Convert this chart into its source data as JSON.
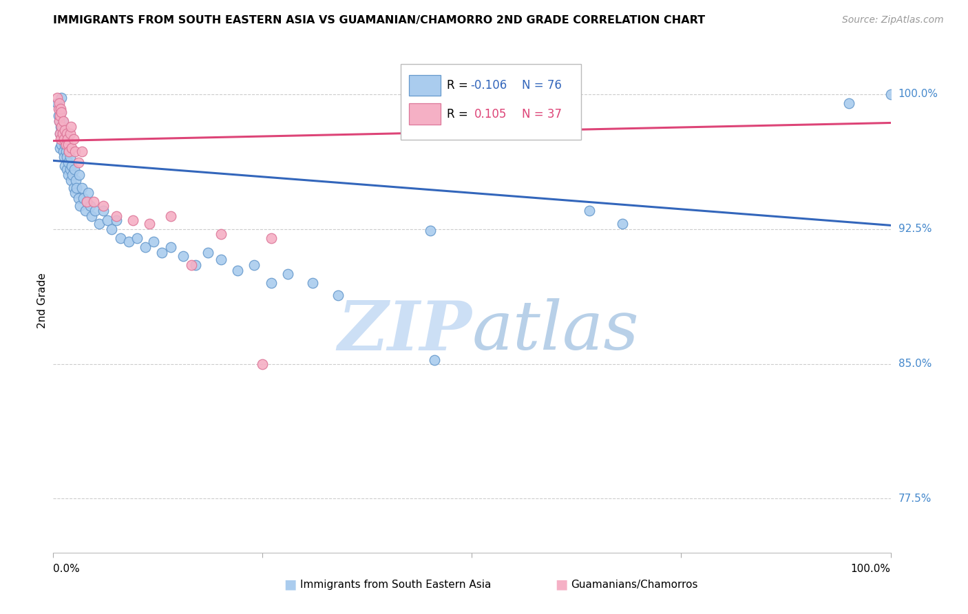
{
  "title": "IMMIGRANTS FROM SOUTH EASTERN ASIA VS GUAMANIAN/CHAMORRO 2ND GRADE CORRELATION CHART",
  "source": "Source: ZipAtlas.com",
  "ylabel": "2nd Grade",
  "xlim": [
    0.0,
    1.0
  ],
  "ylim": [
    0.745,
    1.025
  ],
  "yticks": [
    0.775,
    0.85,
    0.925,
    1.0
  ],
  "ytick_labels": [
    "77.5%",
    "85.0%",
    "92.5%",
    "100.0%"
  ],
  "R_blue": -0.106,
  "N_blue": 76,
  "R_pink": 0.105,
  "N_pink": 37,
  "blue_color": "#aaccee",
  "pink_color": "#f5b0c5",
  "blue_edge_color": "#6699cc",
  "pink_edge_color": "#dd7799",
  "blue_line_color": "#3366bb",
  "pink_line_color": "#dd4477",
  "right_label_color": "#4488cc",
  "watermark_color": "#dde8f5",
  "grid_color": "#cccccc",
  "legend_label_blue": "Immigrants from South Eastern Asia",
  "legend_label_pink": "Guamanians/Chamorros",
  "blue_trend_y0": 0.963,
  "blue_trend_y1": 0.927,
  "pink_trend_y0": 0.974,
  "pink_trend_y1": 0.984,
  "blue_x": [
    0.005,
    0.006,
    0.007,
    0.007,
    0.008,
    0.008,
    0.009,
    0.009,
    0.01,
    0.01,
    0.01,
    0.011,
    0.011,
    0.012,
    0.012,
    0.013,
    0.013,
    0.014,
    0.014,
    0.015,
    0.015,
    0.016,
    0.016,
    0.017,
    0.018,
    0.018,
    0.019,
    0.02,
    0.02,
    0.021,
    0.022,
    0.023,
    0.024,
    0.025,
    0.026,
    0.027,
    0.028,
    0.03,
    0.031,
    0.032,
    0.034,
    0.036,
    0.038,
    0.04,
    0.042,
    0.044,
    0.046,
    0.05,
    0.055,
    0.06,
    0.065,
    0.07,
    0.075,
    0.08,
    0.09,
    0.1,
    0.11,
    0.12,
    0.13,
    0.14,
    0.155,
    0.17,
    0.185,
    0.2,
    0.22,
    0.24,
    0.26,
    0.28,
    0.31,
    0.34,
    0.45,
    0.455,
    0.64,
    0.68,
    0.95,
    1.0
  ],
  "blue_y": [
    0.995,
    0.988,
    0.985,
    0.992,
    0.978,
    0.97,
    0.982,
    0.99,
    0.972,
    0.98,
    0.998,
    0.975,
    0.985,
    0.968,
    0.978,
    0.965,
    0.975,
    0.972,
    0.96,
    0.968,
    0.978,
    0.958,
    0.965,
    0.972,
    0.962,
    0.955,
    0.968,
    0.958,
    0.965,
    0.952,
    0.96,
    0.955,
    0.948,
    0.958,
    0.945,
    0.952,
    0.948,
    0.942,
    0.955,
    0.938,
    0.948,
    0.942,
    0.935,
    0.94,
    0.945,
    0.938,
    0.932,
    0.935,
    0.928,
    0.935,
    0.93,
    0.925,
    0.93,
    0.92,
    0.918,
    0.92,
    0.915,
    0.918,
    0.912,
    0.915,
    0.91,
    0.905,
    0.912,
    0.908,
    0.902,
    0.905,
    0.895,
    0.9,
    0.895,
    0.888,
    0.924,
    0.852,
    0.935,
    0.928,
    0.995,
    1.0
  ],
  "pink_x": [
    0.005,
    0.006,
    0.007,
    0.007,
    0.008,
    0.008,
    0.009,
    0.009,
    0.01,
    0.01,
    0.011,
    0.012,
    0.013,
    0.014,
    0.015,
    0.016,
    0.017,
    0.018,
    0.019,
    0.02,
    0.021,
    0.022,
    0.024,
    0.026,
    0.03,
    0.034,
    0.04,
    0.048,
    0.06,
    0.075,
    0.095,
    0.115,
    0.14,
    0.165,
    0.2,
    0.25,
    0.26
  ],
  "pink_y": [
    0.998,
    0.992,
    0.995,
    0.985,
    0.988,
    0.978,
    0.992,
    0.975,
    0.982,
    0.99,
    0.978,
    0.985,
    0.975,
    0.98,
    0.972,
    0.978,
    0.975,
    0.972,
    0.968,
    0.978,
    0.982,
    0.97,
    0.975,
    0.968,
    0.962,
    0.968,
    0.94,
    0.94,
    0.938,
    0.932,
    0.93,
    0.928,
    0.932,
    0.905,
    0.922,
    0.85,
    0.92
  ]
}
